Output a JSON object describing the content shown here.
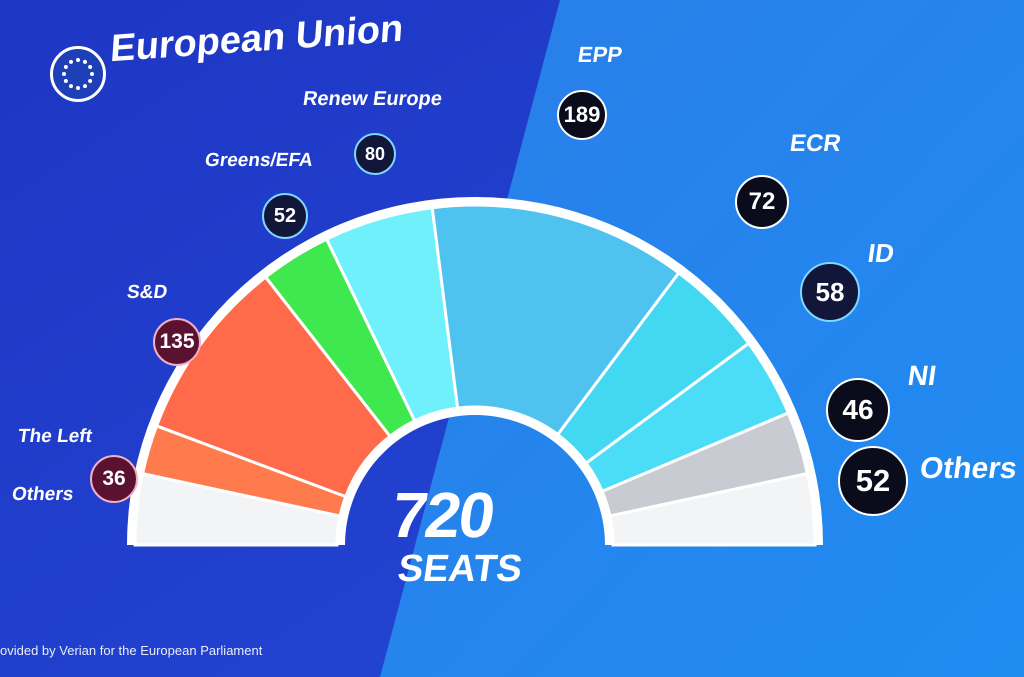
{
  "header": {
    "title": "European Union",
    "logo_icon": "eu-flag-icon"
  },
  "footer": {
    "credit": "ovided by Verian for the European Parliament"
  },
  "colors": {
    "background_left": "#1b3ccf",
    "background_right": "#2a8ff0",
    "the_left": "#ff7a4d",
    "s_and_d": "#ff6a4a",
    "greens_efa": "#3ee84e",
    "renew_europe": "#6ff0fb",
    "epp": "#4fc3f0",
    "ecr": "#42d8f2",
    "id": "#4bdcf7",
    "ni": "#c8ccd2",
    "others": "#f2f4f6"
  },
  "chart_data": {
    "type": "parliament",
    "center_label": {
      "value": "720",
      "unit": "SEATS"
    },
    "parties": [
      {
        "name": "Others",
        "seats": 52,
        "color": "#f2f4f6",
        "side": "left"
      },
      {
        "name": "The Left",
        "seats": 36,
        "color": "#ff7a4d",
        "side": "left"
      },
      {
        "name": "S&D",
        "seats": 135,
        "color": "#ff6a4a",
        "side": "left"
      },
      {
        "name": "Greens/EFA",
        "seats": 52,
        "color": "#3ee84e",
        "side": "left"
      },
      {
        "name": "Renew Europe",
        "seats": 80,
        "color": "#6ff0fb",
        "side": "left"
      },
      {
        "name": "EPP",
        "seats": 189,
        "color": "#4fc3f0",
        "side": "right"
      },
      {
        "name": "ECR",
        "seats": 72,
        "color": "#42d8f2",
        "side": "right"
      },
      {
        "name": "ID",
        "seats": 58,
        "color": "#4bdcf7",
        "side": "right"
      },
      {
        "name": "NI",
        "seats": 46,
        "color": "#c8ccd2",
        "side": "right"
      },
      {
        "name": "Others",
        "seats": 52,
        "color": "#f2f4f6",
        "side": "right"
      }
    ],
    "labels": [
      {
        "party": "Renew Europe",
        "seats": "80"
      },
      {
        "party": "Greens/EFA",
        "seats": "52"
      },
      {
        "party": "S&D",
        "seats": "135"
      },
      {
        "party": "The Left",
        "seats": "36"
      },
      {
        "party": "Others",
        "seats": ""
      },
      {
        "party": "EPP",
        "seats": "189"
      },
      {
        "party": "ECR",
        "seats": "72"
      },
      {
        "party": "ID",
        "seats": "58"
      },
      {
        "party": "NI",
        "seats": "46"
      },
      {
        "party": "Others",
        "seats": "52"
      }
    ]
  }
}
